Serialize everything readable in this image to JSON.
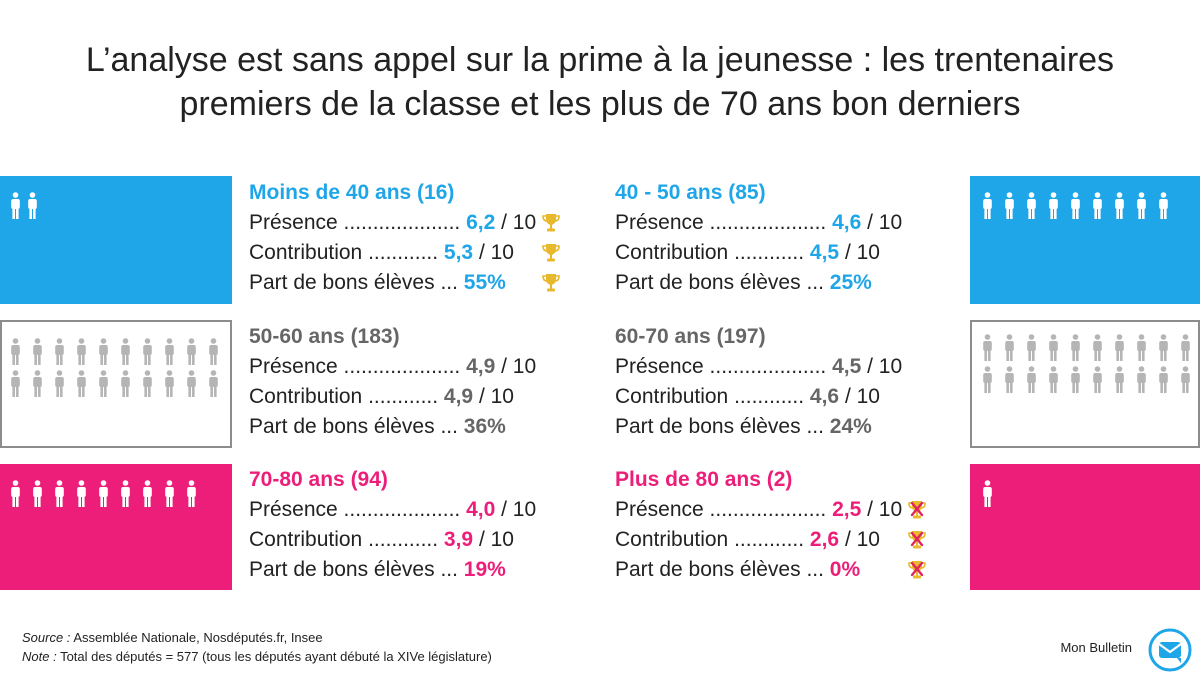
{
  "title": {
    "line1": "L’analyse est sans appel sur la prime à la jeunesse : les trentenaires",
    "line2": "premiers de la classe et les plus de 70 ans bon derniers"
  },
  "colors": {
    "blue": "#1fa6e9",
    "gray": "#666666",
    "pink": "#ec1e79",
    "trophy": "#e8b92c",
    "cross": "#e0245e"
  },
  "icons": {
    "person": "person-icon",
    "trophy": "trophy-icon",
    "crossed_trophy": "crossed-trophy-icon",
    "logo": "mail-icon"
  },
  "labels": {
    "presence": "Présence ....................",
    "contribution": "Contribution  ............",
    "bons": "Part de bons élèves ...",
    "max": " / 10"
  },
  "groups": [
    {
      "id": "lt40",
      "heading": "Moins de 40 ans (16)",
      "color": "blue",
      "presence": "6,2",
      "contribution": "5,3",
      "bons": "55%",
      "people": 2,
      "badge": "trophy"
    },
    {
      "id": "40-50",
      "heading": "40 - 50 ans (85)",
      "color": "blue",
      "presence": "4,6",
      "contribution": "4,5",
      "bons": "25%",
      "people": 9,
      "badge": "none"
    },
    {
      "id": "50-60",
      "heading": "50-60 ans (183)",
      "color": "gray",
      "presence": "4,9",
      "contribution": "4,9",
      "bons": "36%",
      "people": 20,
      "badge": "none"
    },
    {
      "id": "60-70",
      "heading": "60-70 ans (197)",
      "color": "gray",
      "presence": "4,5",
      "contribution": "4,6",
      "bons": "24%",
      "people": 20,
      "badge": "none"
    },
    {
      "id": "70-80",
      "heading": "70-80 ans (94)",
      "color": "pink",
      "presence": "4,0",
      "contribution": "3,9",
      "bons": "19%",
      "people": 9,
      "badge": "none"
    },
    {
      "id": "gt80",
      "heading": "Plus de 80 ans (2)",
      "color": "pink",
      "presence": "2,5",
      "contribution": "2,6",
      "bons": "0%",
      "people": 1,
      "badge": "crossed"
    }
  ],
  "footer": {
    "source_label": "Source :",
    "source_text": " Assemblée Nationale, Nosdéputés.fr, Insee",
    "note_label": "Note :",
    "note_text": " Total des députés = 577 (tous les députés ayant débuté la XIVe législature)"
  },
  "brand": "Mon Bulletin"
}
